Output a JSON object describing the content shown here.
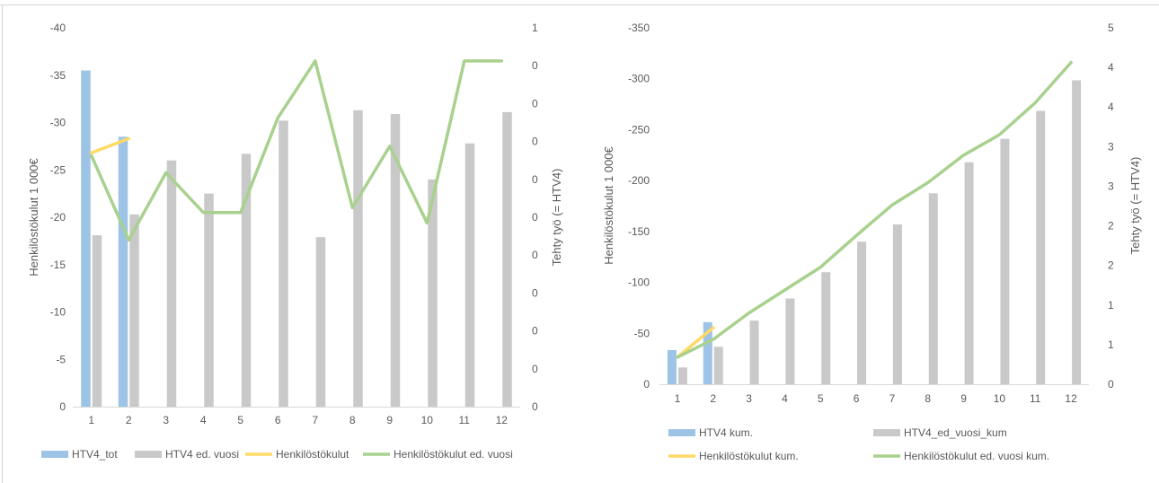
{
  "colors": {
    "htv4": "#9dc3e6",
    "htv4_prev": "#c9c9c9",
    "cost": "#ffd966",
    "cost_prev": "#a9d18e",
    "grid": "#d9d9d9",
    "text": "#595959"
  },
  "chart_data": [
    {
      "type": "bar",
      "combo": "bar+line",
      "ylabel": "Henkilöstökulut 1 000€",
      "y2label": "Tehty työ (= HTV4)",
      "categories": [
        "1",
        "2",
        "3",
        "4",
        "5",
        "6",
        "7",
        "8",
        "9",
        "10",
        "11",
        "12"
      ],
      "ylim": [
        0,
        -40
      ],
      "yticks": [
        "-40",
        "-35",
        "-30",
        "-25",
        "-20",
        "-15",
        "-10",
        "-5",
        "0"
      ],
      "y2ticks": [
        "1",
        "0",
        "0",
        "0",
        "0",
        "0",
        "0",
        "0",
        "0",
        "0",
        "0"
      ],
      "grid": false,
      "legend_position": "bottom",
      "series": [
        {
          "name": "HTV4_tot",
          "kind": "bar",
          "color_key": "htv4",
          "values": [
            -35.5,
            -28.5,
            null,
            null,
            null,
            null,
            null,
            null,
            null,
            null,
            null,
            null
          ]
        },
        {
          "name": "HTV4 ed. vuosi",
          "kind": "bar",
          "color_key": "htv4_prev",
          "values": [
            -18.1,
            -20.3,
            -26.0,
            -22.5,
            -26.7,
            -30.2,
            -17.9,
            -31.3,
            -30.9,
            -24.0,
            -27.8,
            -31.1
          ]
        },
        {
          "name": "Henkilöstökulut",
          "kind": "line",
          "color_key": "cost",
          "values": [
            -26.8,
            -28.3,
            null,
            null,
            null,
            null,
            null,
            null,
            null,
            null,
            null,
            null
          ]
        },
        {
          "name": "Henkilöstökulut ed. vuosi",
          "kind": "line",
          "color_key": "cost_prev",
          "values": [
            -26.5,
            -17.6,
            -24.7,
            -20.5,
            -20.5,
            -30.5,
            -36.5,
            -21.0,
            -27.5,
            -19.4,
            -36.5,
            -36.5
          ]
        }
      ]
    },
    {
      "type": "bar",
      "combo": "bar+line",
      "ylabel": "Henkilöstökulut 1 000€",
      "y2label": "Tehty työ (= HTV4)",
      "categories": [
        "1",
        "2",
        "3",
        "4",
        "5",
        "6",
        "7",
        "8",
        "9",
        "10",
        "11",
        "12"
      ],
      "ylim": [
        0,
        -350
      ],
      "yticks": [
        "-350",
        "-300",
        "-250",
        "-200",
        "-150",
        "-100",
        "-50",
        "0"
      ],
      "y2ticks": [
        "5",
        "4",
        "4",
        "3",
        "3",
        "2",
        "2",
        "1",
        "1",
        "0"
      ],
      "grid": false,
      "legend_position": "bottom",
      "series": [
        {
          "name": "HTV4 kum.",
          "kind": "bar",
          "color_key": "htv4",
          "values": [
            -33.5,
            -61.0,
            null,
            null,
            null,
            null,
            null,
            null,
            null,
            null,
            null,
            null
          ]
        },
        {
          "name": "HTV4_ed_vuosi_kum",
          "kind": "bar",
          "color_key": "htv4_prev",
          "values": [
            -16.5,
            -36.8,
            -62.5,
            -84.2,
            -110.0,
            -140.0,
            -157.0,
            -187.5,
            -218.0,
            -241.0,
            -268.5,
            -298.5
          ]
        },
        {
          "name": "Henkilöstökulut kum.",
          "kind": "line",
          "color_key": "cost",
          "values": [
            -26.5,
            -55.5,
            null,
            null,
            null,
            null,
            null,
            null,
            null,
            null,
            null,
            null
          ]
        },
        {
          "name": "Henkilöstökulut ed. vuosi kum.",
          "kind": "line",
          "color_key": "cost_prev",
          "values": [
            -26.5,
            -44.0,
            -70.0,
            -92.5,
            -115.0,
            -146.0,
            -176.0,
            -198.0,
            -225.0,
            -245.0,
            -276.5,
            -316.0
          ]
        }
      ]
    }
  ]
}
